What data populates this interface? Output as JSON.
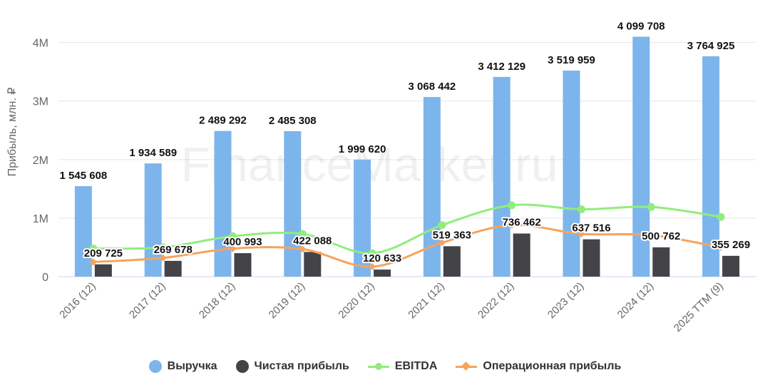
{
  "chart_data": {
    "type": "bar",
    "title": "",
    "xlabel": "",
    "ylabel": "Прибыль, млн. ₽",
    "categories": [
      "2016 (12)",
      "2017 (12)",
      "2018 (12)",
      "2019 (12)",
      "2020 (12)",
      "2021 (12)",
      "2022 (12)",
      "2023 (12)",
      "2024 (12)",
      "2025 TTM (9)"
    ],
    "ylim": [
      0,
      4300000
    ],
    "yticks": [
      {
        "value": 0,
        "label": "0"
      },
      {
        "value": 1000000,
        "label": "1M"
      },
      {
        "value": 2000000,
        "label": "2M"
      },
      {
        "value": 3000000,
        "label": "3M"
      },
      {
        "value": 4000000,
        "label": "4M"
      }
    ],
    "grid": "horizontal",
    "legend_position": "bottom",
    "watermark": "FinanceMarker.ru",
    "series": [
      {
        "name": "Выручка",
        "kind": "bar",
        "color": "#7cb5ec",
        "values": [
          1545608,
          1934589,
          2489292,
          2485308,
          1999620,
          3068442,
          3412129,
          3519959,
          4099708,
          3764925
        ],
        "labels": [
          "1 545 608",
          "1 934 589",
          "2 489 292",
          "2 485 308",
          "1 999 620",
          "3 068 442",
          "3 412 129",
          "3 519 959",
          "4 099 708",
          "3 764 925"
        ]
      },
      {
        "name": "Чистая прибыль",
        "kind": "bar",
        "color": "#434348",
        "values": [
          209725,
          269678,
          400993,
          422088,
          120633,
          519363,
          736462,
          637516,
          500762,
          355269
        ],
        "labels": [
          "209 725",
          "269 678",
          "400 993",
          "422 088",
          "120 633",
          "519 363",
          "736 462",
          "637 516",
          "500 762",
          "355 269"
        ]
      },
      {
        "name": "EBITDA",
        "kind": "line",
        "marker": "circle",
        "color": "#90ed7d",
        "values": [
          480000,
          500000,
          690000,
          730000,
          400000,
          880000,
          1220000,
          1150000,
          1190000,
          1020000
        ]
      },
      {
        "name": "Операционная прибыль",
        "kind": "line",
        "marker": "diamond",
        "color": "#f7a35c",
        "values": [
          250000,
          320000,
          480000,
          470000,
          170000,
          580000,
          880000,
          730000,
          710000,
          500000
        ]
      }
    ]
  }
}
